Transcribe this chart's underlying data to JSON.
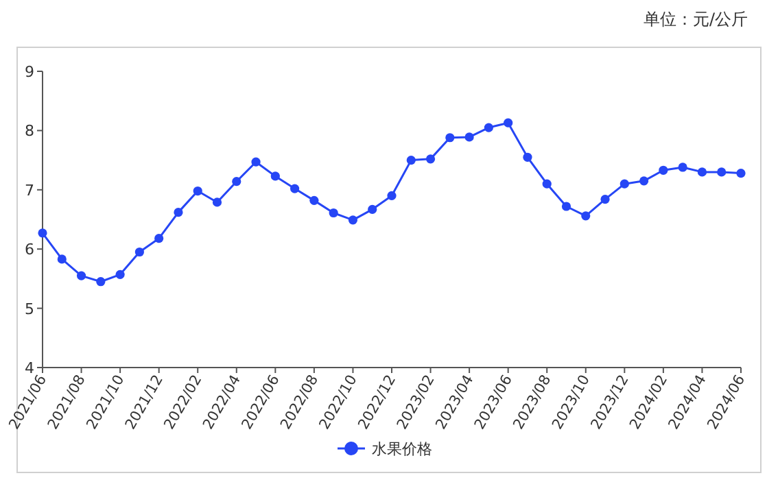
{
  "chart_data": {
    "type": "line",
    "annotations": [
      "单位：元/公斤"
    ],
    "categories": [
      "2021/06",
      null,
      "2021/08",
      null,
      "2021/10",
      null,
      "2021/12",
      null,
      "2022/02",
      null,
      "2022/04",
      null,
      "2022/06",
      null,
      "2022/08",
      null,
      "2022/10",
      null,
      "2022/12",
      null,
      "2023/02",
      null,
      "2023/04",
      null,
      "2023/06",
      null,
      "2023/08",
      null,
      "2023/10",
      null,
      "2023/12",
      null,
      "2024/02",
      null,
      "2024/04",
      null,
      "2024/06"
    ],
    "series": [
      {
        "name": "水果价格",
        "color": "#2646f5",
        "values": [
          6.27,
          5.83,
          5.55,
          5.45,
          5.57,
          5.95,
          6.18,
          6.62,
          6.98,
          6.79,
          7.14,
          7.47,
          7.23,
          7.02,
          6.82,
          6.61,
          6.49,
          6.67,
          6.9,
          7.5,
          7.52,
          7.88,
          7.89,
          8.05,
          8.13,
          7.55,
          7.1,
          6.72,
          6.56,
          6.84,
          7.1,
          7.15,
          7.33,
          7.38,
          7.3,
          7.3,
          7.28
        ]
      }
    ],
    "ylim": [
      4,
      9
    ],
    "yticks": [
      4,
      5,
      6,
      7,
      8,
      9
    ],
    "marker": "circle",
    "line_style": "solid",
    "grid": false,
    "legend": "bottom"
  }
}
